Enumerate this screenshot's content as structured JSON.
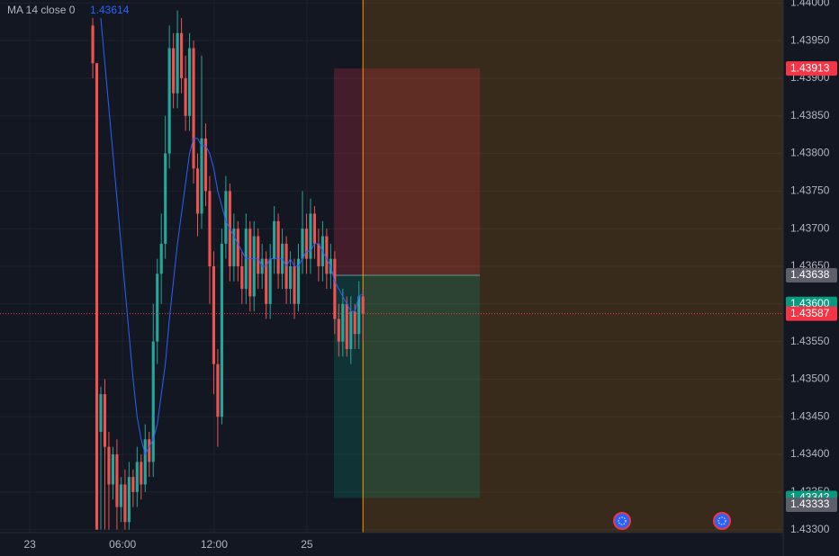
{
  "chart_data": {
    "type": "candlestick",
    "legend": {
      "name": "MA 14 close 0",
      "value_label": "1.43614"
    },
    "xlim": [
      -23,
      171.2
    ],
    "xticks": [
      {
        "value": -15.6,
        "label": "23"
      },
      {
        "value": 7.4,
        "label": "06:00"
      },
      {
        "value": 30.1,
        "label": "12:00"
      },
      {
        "value": 53.1,
        "label": "25"
      }
    ],
    "ylim": [
      1.43296,
      1.44004
    ],
    "yticks": [
      {
        "value": 1.433,
        "label": "1.43300"
      },
      {
        "value": 1.4335,
        "label": "1.43350"
      },
      {
        "value": 1.434,
        "label": "1.43400"
      },
      {
        "value": 1.4345,
        "label": "1.43450"
      },
      {
        "value": 1.435,
        "label": "1.43500"
      },
      {
        "value": 1.4355,
        "label": "1.43550"
      },
      {
        "value": 1.436,
        "label": "1.43600"
      },
      {
        "value": 1.4365,
        "label": "1.43650"
      },
      {
        "value": 1.437,
        "label": "1.43700"
      },
      {
        "value": 1.4375,
        "label": "1.43750"
      },
      {
        "value": 1.438,
        "label": "1.43800"
      },
      {
        "value": 1.4385,
        "label": "1.43850"
      },
      {
        "value": 1.439,
        "label": "1.43900"
      },
      {
        "value": 1.4395,
        "label": "1.43950"
      },
      {
        "value": 1.44,
        "label": "1.44000"
      }
    ],
    "grid": true,
    "up_color": "#26a69a",
    "down_color": "#ef5350",
    "open": [
      1.4397,
      1.4392,
      1.4343,
      1.4348,
      1.4341,
      1.4336,
      1.434,
      1.4333,
      1.4336,
      1.4331,
      1.4337,
      1.4335,
      1.4339,
      1.4336,
      1.4342,
      1.4339,
      1.4355,
      1.4364,
      1.4368,
      1.438,
      1.4394,
      1.4388,
      1.4396,
      1.439,
      1.4385,
      1.4394,
      1.4378,
      1.4372,
      1.4382,
      1.4375,
      1.4365,
      1.4352,
      1.4345,
      1.4368,
      1.4375,
      1.4365,
      1.437,
      1.4365,
      1.4362,
      1.437,
      1.4361,
      1.4369,
      1.4364,
      1.4366,
      1.436,
      1.4366,
      1.4371,
      1.4364,
      1.4368,
      1.4362,
      1.4365,
      1.436,
      1.4366,
      1.437,
      1.4366,
      1.4372,
      1.4368,
      1.4365,
      1.4369,
      1.4364,
      1.4366,
      1.4358,
      1.4355,
      1.436,
      1.4354,
      1.4359,
      1.4356,
      1.4361
    ],
    "high": [
      1.4398,
      1.4392,
      1.4349,
      1.435,
      1.4343,
      1.4341,
      1.4342,
      1.4337,
      1.4338,
      1.4339,
      1.4338,
      1.4341,
      1.434,
      1.4344,
      1.4343,
      1.436,
      1.4366,
      1.4372,
      1.4385,
      1.4397,
      1.4396,
      1.4399,
      1.4398,
      1.4393,
      1.4396,
      1.4395,
      1.438,
      1.4393,
      1.4384,
      1.4377,
      1.4367,
      1.4354,
      1.437,
      1.4377,
      1.4376,
      1.4372,
      1.4371,
      1.4367,
      1.4372,
      1.4371,
      1.4371,
      1.437,
      1.4368,
      1.4367,
      1.4368,
      1.4373,
      1.4372,
      1.437,
      1.4369,
      1.4367,
      1.4366,
      1.4368,
      1.4375,
      1.4372,
      1.4374,
      1.4373,
      1.437,
      1.4371,
      1.437,
      1.4368,
      1.4367,
      1.436,
      1.4362,
      1.4361,
      1.4361,
      1.436,
      1.4363,
      1.4362
    ],
    "low": [
      1.439,
      1.433,
      1.433,
      1.433,
      1.433,
      1.4334,
      1.433,
      1.4331,
      1.433,
      1.433,
      1.4333,
      1.4333,
      1.4334,
      1.4335,
      1.4337,
      1.4337,
      1.4352,
      1.436,
      1.4366,
      1.4378,
      1.4386,
      1.4386,
      1.4388,
      1.4383,
      1.4383,
      1.4376,
      1.4369,
      1.437,
      1.4373,
      1.436,
      1.4348,
      1.4341,
      1.4344,
      1.4366,
      1.4363,
      1.4363,
      1.4363,
      1.436,
      1.436,
      1.4359,
      1.4359,
      1.4362,
      1.4362,
      1.4358,
      1.4358,
      1.4364,
      1.4362,
      1.4362,
      1.436,
      1.436,
      1.4358,
      1.4359,
      1.4364,
      1.4364,
      1.4364,
      1.4366,
      1.4363,
      1.4363,
      1.4362,
      1.4362,
      1.4356,
      1.4353,
      1.4353,
      1.4353,
      1.4352,
      1.4354,
      1.4354,
      1.4355
    ],
    "close": [
      1.4392,
      1.433,
      1.4348,
      1.4341,
      1.4336,
      1.434,
      1.4333,
      1.4336,
      1.4331,
      1.4337,
      1.4335,
      1.4339,
      1.4336,
      1.4342,
      1.4339,
      1.4355,
      1.4364,
      1.4368,
      1.438,
      1.4394,
      1.4388,
      1.4396,
      1.439,
      1.4385,
      1.4394,
      1.4378,
      1.4372,
      1.4382,
      1.4375,
      1.4365,
      1.4352,
      1.4345,
      1.4368,
      1.4375,
      1.4365,
      1.437,
      1.4365,
      1.4362,
      1.437,
      1.4361,
      1.4369,
      1.4364,
      1.4366,
      1.436,
      1.4366,
      1.4371,
      1.4364,
      1.4368,
      1.4362,
      1.4365,
      1.436,
      1.4366,
      1.437,
      1.4366,
      1.4372,
      1.4368,
      1.4365,
      1.4369,
      1.4364,
      1.4366,
      1.4358,
      1.4355,
      1.436,
      1.4354,
      1.4359,
      1.4356,
      1.4361,
      1.43587
    ],
    "ma": {
      "color": "#2962ff",
      "values": [
        null,
        null,
        1.4398,
        1.4392,
        1.4386,
        1.438,
        1.4374,
        1.4368,
        1.4362,
        1.4356,
        1.435,
        1.4345,
        1.4342,
        1.434,
        1.4341,
        1.4342,
        1.4344,
        1.4348,
        1.4352,
        1.4358,
        1.4363,
        1.4368,
        1.4372,
        1.4376,
        1.438,
        1.4382,
        1.4382,
        1.4381,
        1.4381,
        1.438,
        1.4378,
        1.4375,
        1.4373,
        1.4371,
        1.437,
        1.4369,
        1.4368,
        1.4367,
        1.4366,
        1.4366,
        1.4366,
        1.4366,
        1.4365,
        1.4365,
        1.4366,
        1.4366,
        1.4366,
        1.4366,
        1.4365,
        1.4366,
        1.4365,
        1.4365,
        1.4366,
        1.4367,
        1.4367,
        1.4368,
        1.4368,
        1.4367,
        1.4366,
        1.4365,
        1.4363,
        1.4362,
        1.4361,
        1.436,
        1.4359,
        1.4359,
        1.4361,
        1.43614
      ]
    },
    "price_tags": [
      {
        "value": 1.43913,
        "label": "1.43913",
        "color": "#f23645"
      },
      {
        "value": 1.43638,
        "label": "1.43638",
        "color": "#5d606b"
      },
      {
        "value": 1.436,
        "label": "1.43600",
        "color": "#089981"
      },
      {
        "value": 1.43587,
        "label": "1.43587",
        "color": "#f23645"
      },
      {
        "value": 1.43342,
        "label": "1.43342",
        "color": "#089981"
      },
      {
        "value": 1.43333,
        "label": "1.43333",
        "color": "#5d606b"
      }
    ]
  }
}
